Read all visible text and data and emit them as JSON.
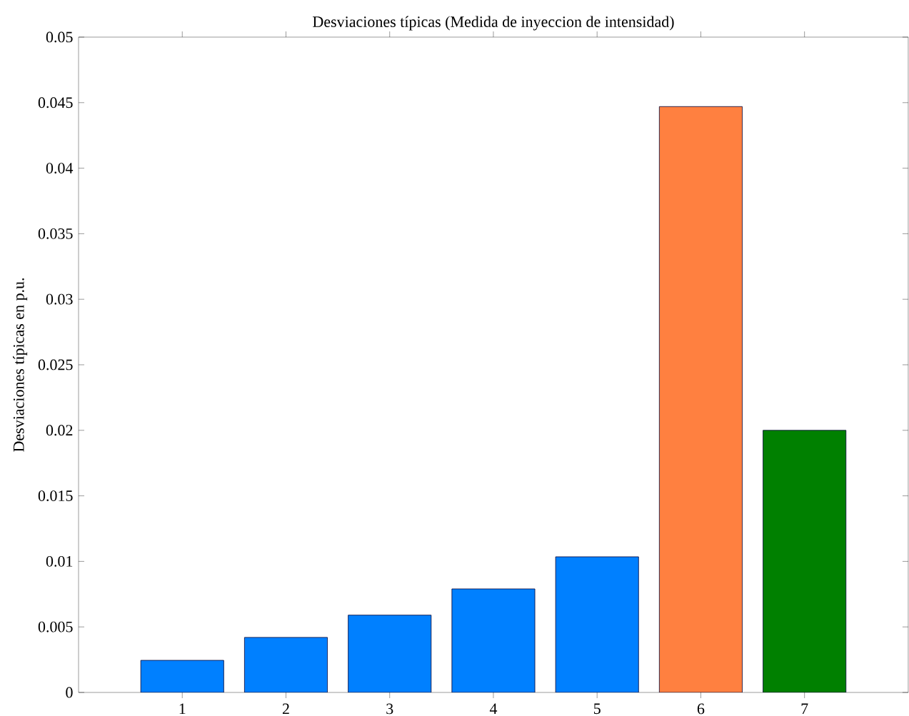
{
  "chart_data": {
    "type": "bar",
    "title": "Desviaciones típicas (Medida de inyeccion de intensidad)",
    "ylabel": "Desviaciones típicas en p.u.",
    "categories": [
      "1",
      "2",
      "3",
      "4",
      "5",
      "6",
      "7"
    ],
    "values": [
      0.00245,
      0.0042,
      0.0059,
      0.0079,
      0.01035,
      0.0447,
      0.02
    ],
    "colors": [
      "#0080ff",
      "#0080ff",
      "#0080ff",
      "#0080ff",
      "#0080ff",
      "#ff8040",
      "#008000"
    ],
    "ylim": [
      0,
      0.05
    ],
    "yticks": [
      0,
      0.005,
      0.01,
      0.015,
      0.02,
      0.025,
      0.03,
      0.035,
      0.04,
      0.045,
      0.05
    ],
    "grid": false
  }
}
